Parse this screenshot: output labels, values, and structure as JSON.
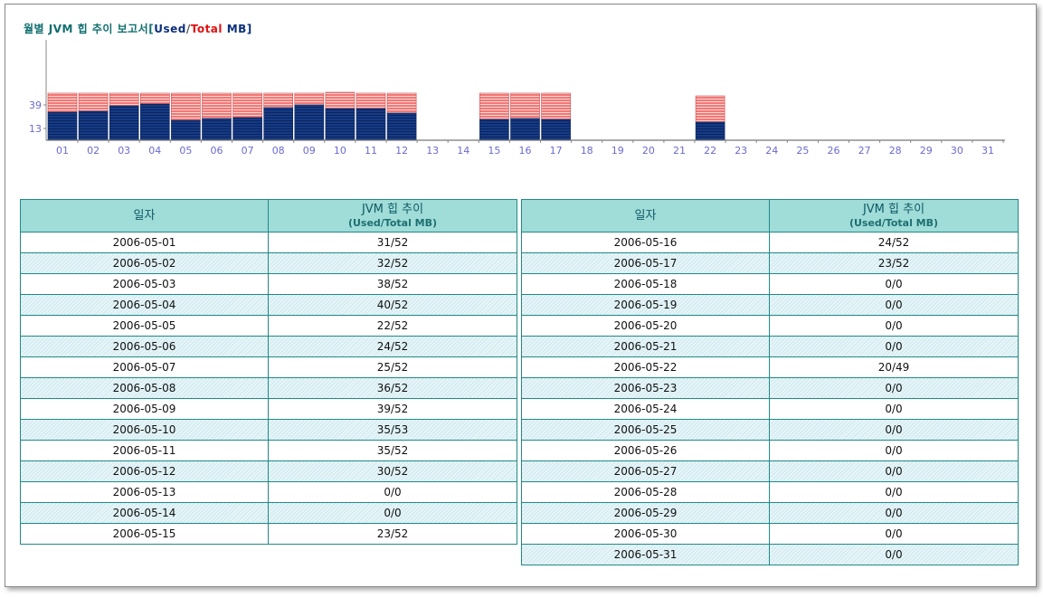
{
  "report": {
    "title_prefix": "월별 JVM 힙 추이 보고서[",
    "title_used": "Used",
    "title_slash": "/",
    "title_total": "Total",
    "title_suffix": " MB]"
  },
  "colors": {
    "used": "#163a84",
    "total": "#ef6f6f",
    "header_bg": "#a0dcd8",
    "border": "#1f8a86",
    "axis_label": "#6a6ad0"
  },
  "chart_data": {
    "type": "bar",
    "stacked": true,
    "categories": [
      "01",
      "02",
      "03",
      "04",
      "05",
      "06",
      "07",
      "08",
      "09",
      "10",
      "11",
      "12",
      "13",
      "14",
      "15",
      "16",
      "17",
      "18",
      "19",
      "20",
      "21",
      "22",
      "23",
      "24",
      "25",
      "26",
      "27",
      "28",
      "29",
      "30",
      "31"
    ],
    "series": [
      {
        "name": "Used",
        "values": [
          31,
          32,
          38,
          40,
          22,
          24,
          25,
          36,
          39,
          35,
          35,
          30,
          0,
          0,
          23,
          24,
          23,
          0,
          0,
          0,
          0,
          20,
          0,
          0,
          0,
          0,
          0,
          0,
          0,
          0,
          0
        ]
      },
      {
        "name": "Total",
        "values": [
          52,
          52,
          52,
          52,
          52,
          52,
          52,
          52,
          52,
          53,
          52,
          52,
          0,
          0,
          52,
          52,
          52,
          0,
          0,
          0,
          0,
          49,
          0,
          0,
          0,
          0,
          0,
          0,
          0,
          0,
          0
        ]
      }
    ],
    "yticks": [
      13,
      39
    ],
    "ylim": [
      0,
      52
    ]
  },
  "tables": {
    "headers": {
      "date": "일자",
      "trend": "JVM 힙 추이",
      "unit": "(Used/Total MB)"
    },
    "left": [
      {
        "date": "2006-05-01",
        "value": "31/52"
      },
      {
        "date": "2006-05-02",
        "value": "32/52"
      },
      {
        "date": "2006-05-03",
        "value": "38/52"
      },
      {
        "date": "2006-05-04",
        "value": "40/52"
      },
      {
        "date": "2006-05-05",
        "value": "22/52"
      },
      {
        "date": "2006-05-06",
        "value": "24/52"
      },
      {
        "date": "2006-05-07",
        "value": "25/52"
      },
      {
        "date": "2006-05-08",
        "value": "36/52"
      },
      {
        "date": "2006-05-09",
        "value": "39/52"
      },
      {
        "date": "2006-05-10",
        "value": "35/53"
      },
      {
        "date": "2006-05-11",
        "value": "35/52"
      },
      {
        "date": "2006-05-12",
        "value": "30/52"
      },
      {
        "date": "2006-05-13",
        "value": "0/0"
      },
      {
        "date": "2006-05-14",
        "value": "0/0"
      },
      {
        "date": "2006-05-15",
        "value": "23/52"
      }
    ],
    "right": [
      {
        "date": "2006-05-16",
        "value": "24/52"
      },
      {
        "date": "2006-05-17",
        "value": "23/52"
      },
      {
        "date": "2006-05-18",
        "value": "0/0"
      },
      {
        "date": "2006-05-19",
        "value": "0/0"
      },
      {
        "date": "2006-05-20",
        "value": "0/0"
      },
      {
        "date": "2006-05-21",
        "value": "0/0"
      },
      {
        "date": "2006-05-22",
        "value": "20/49"
      },
      {
        "date": "2006-05-23",
        "value": "0/0"
      },
      {
        "date": "2006-05-24",
        "value": "0/0"
      },
      {
        "date": "2006-05-25",
        "value": "0/0"
      },
      {
        "date": "2006-05-26",
        "value": "0/0"
      },
      {
        "date": "2006-05-27",
        "value": "0/0"
      },
      {
        "date": "2006-05-28",
        "value": "0/0"
      },
      {
        "date": "2006-05-29",
        "value": "0/0"
      },
      {
        "date": "2006-05-30",
        "value": "0/0"
      },
      {
        "date": "2006-05-31",
        "value": "0/0"
      }
    ]
  }
}
